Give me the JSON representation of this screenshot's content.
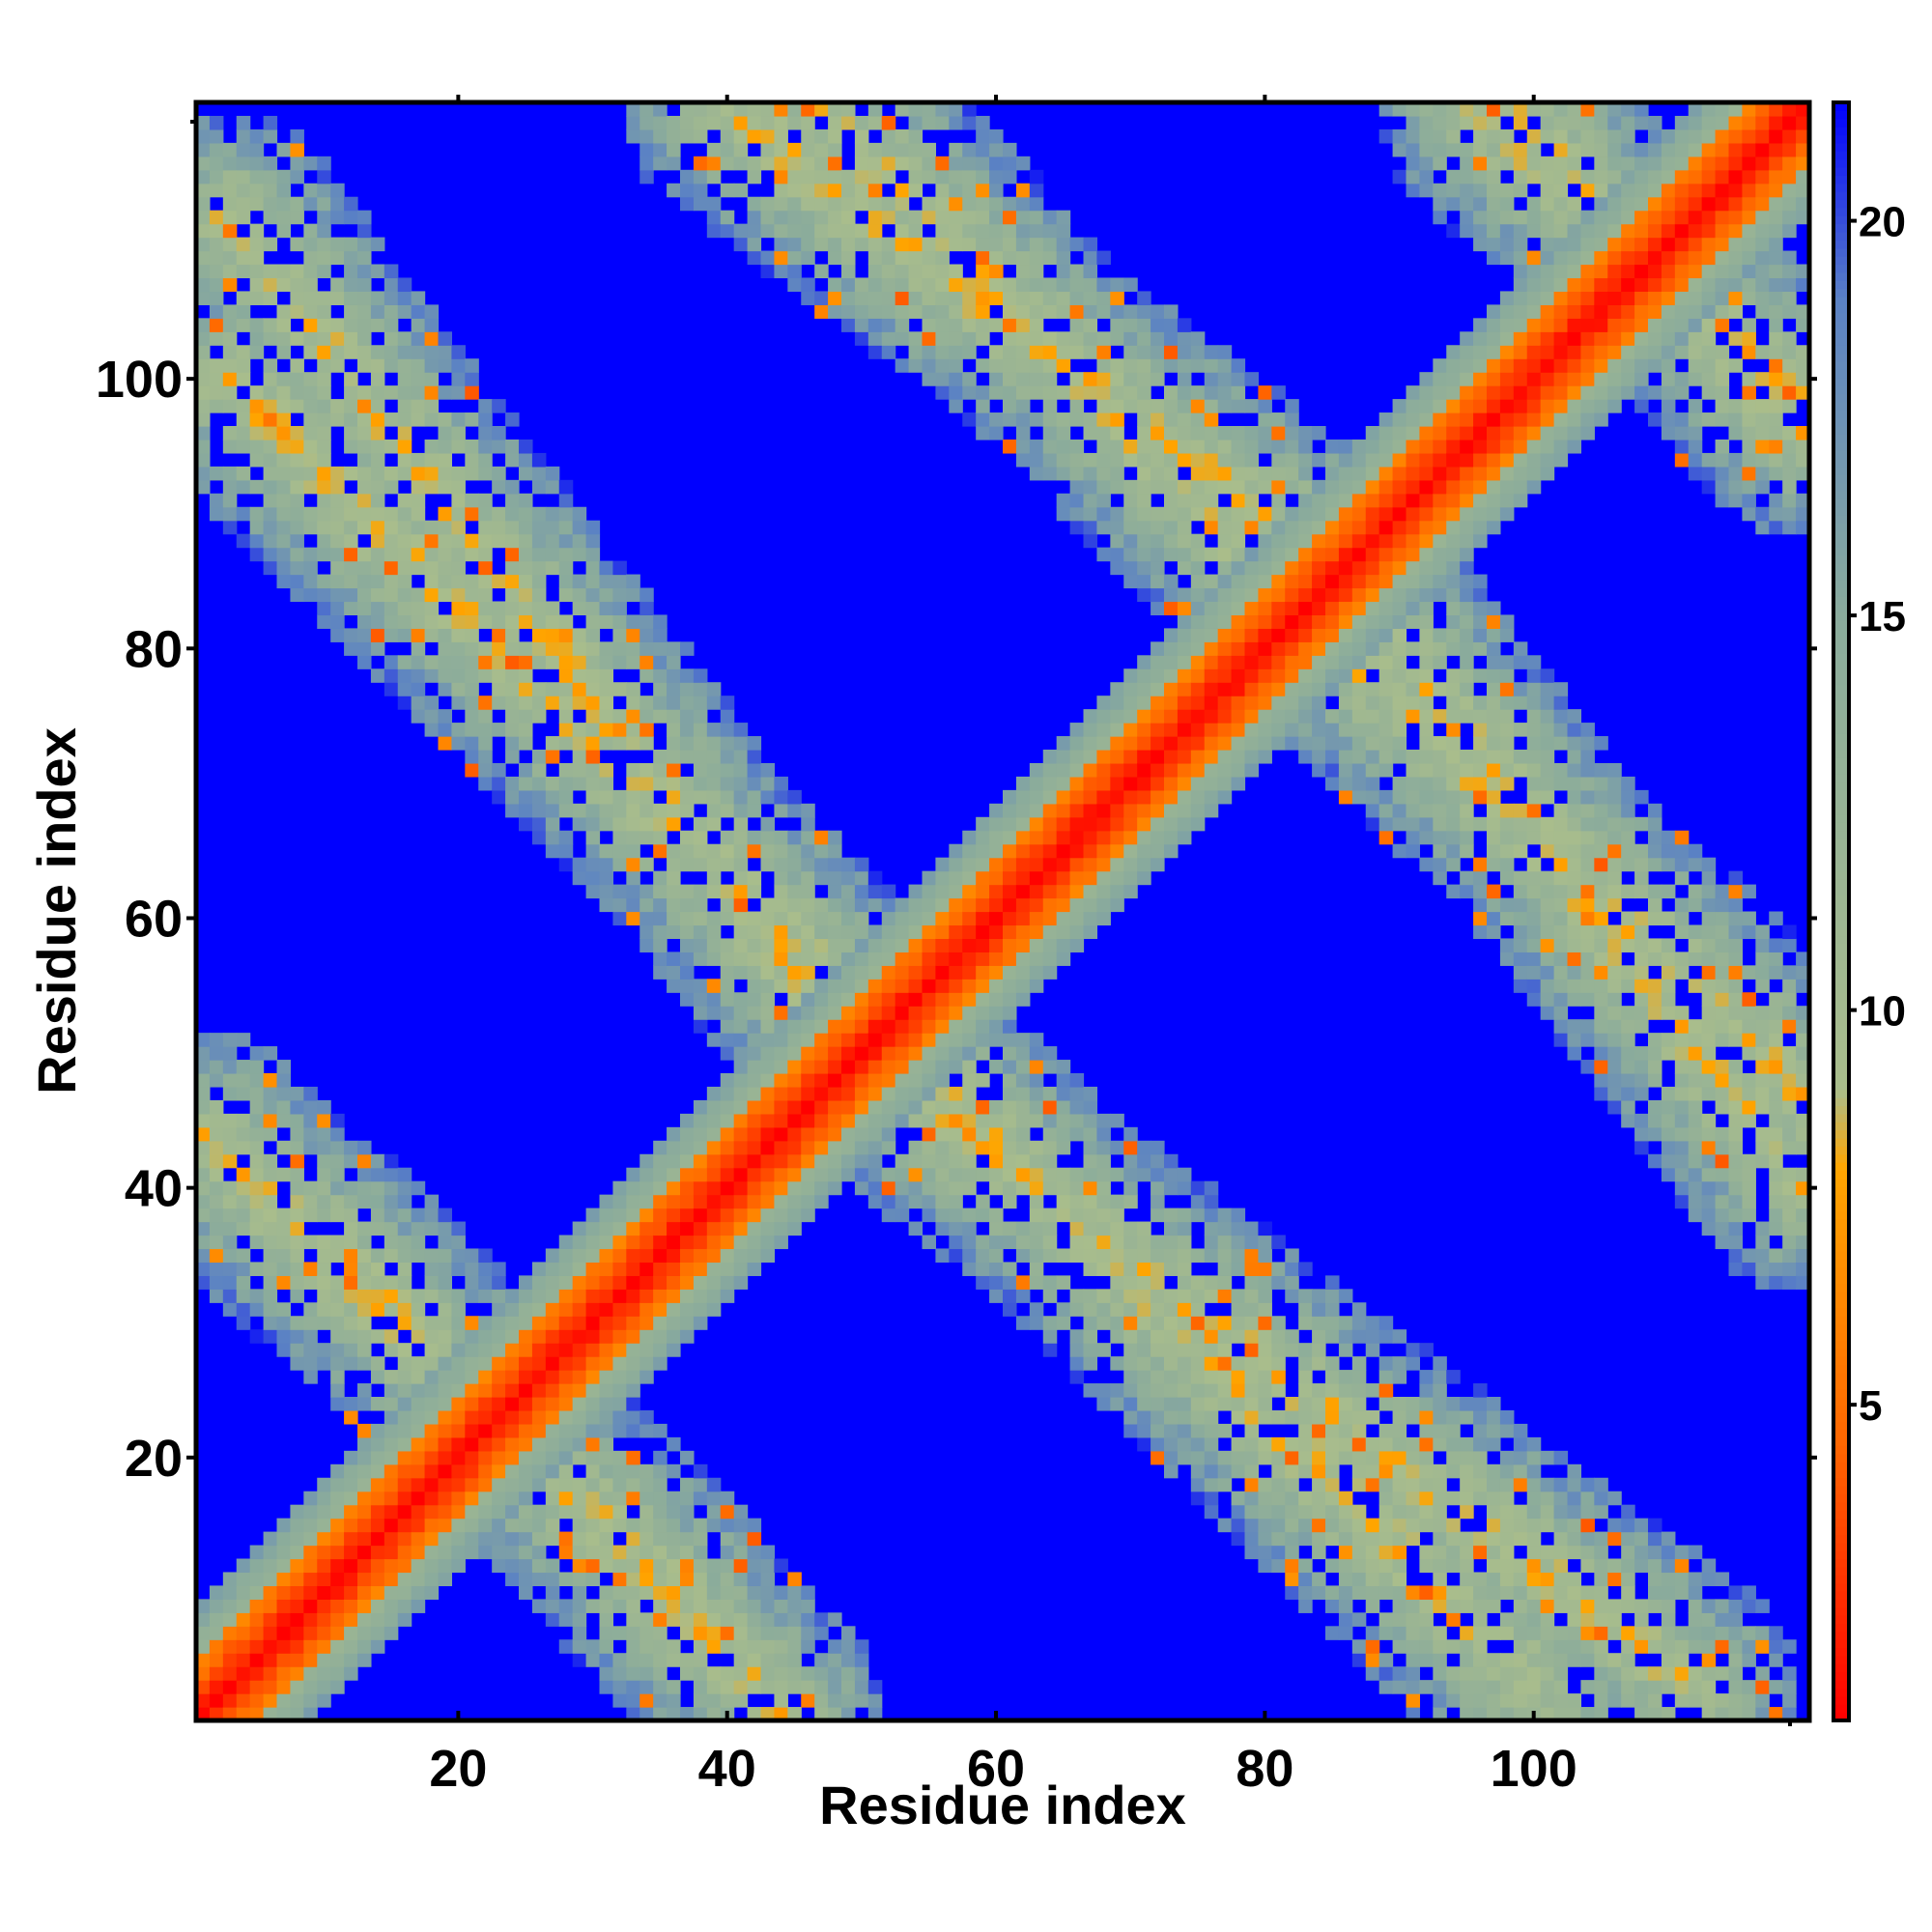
{
  "chart_data": {
    "type": "heatmap",
    "title": "",
    "xlabel": "Residue index",
    "ylabel": "Residue index",
    "n_residues": 120,
    "xlim": [
      1,
      120
    ],
    "ylim": [
      1,
      120
    ],
    "x_ticks": [
      "20",
      "40",
      "60",
      "80",
      "100"
    ],
    "x_tick_values": [
      20,
      40,
      60,
      80,
      100
    ],
    "y_ticks": [
      "20",
      "40",
      "60",
      "80",
      "100"
    ],
    "y_tick_values": [
      20,
      40,
      60,
      80,
      100
    ],
    "colorbar": {
      "range": [
        1,
        21.5
      ],
      "ticks": [
        "5",
        "10",
        "15",
        "20"
      ],
      "tick_values": [
        5,
        10,
        15,
        20
      ],
      "stops": [
        {
          "value": 1,
          "color": "#ff0000"
        },
        {
          "value": 4.5,
          "color": "#ff6600"
        },
        {
          "value": 8,
          "color": "#ffa500"
        },
        {
          "value": 9,
          "color": "#a9bd8c"
        },
        {
          "value": 15,
          "color": "#8aab9c"
        },
        {
          "value": 19,
          "color": "#5b82c4"
        },
        {
          "value": 21.5,
          "color": "#0000ff"
        }
      ]
    },
    "background_value": 21.5,
    "cap_value": 21,
    "diagonal_band": {
      "half_width": 8,
      "distance_per_residue": 1.2
    },
    "contact_segments": [
      {
        "x1": 1,
        "y1": 44,
        "x2": 36,
        "y2": 10,
        "width": 7
      },
      {
        "x1": 3,
        "y1": 100,
        "x2": 50,
        "y2": 53,
        "width": 8
      },
      {
        "x1": 40,
        "y1": 120,
        "x2": 88,
        "y2": 84,
        "width": 9
      },
      {
        "x1": 52,
        "y1": 48,
        "x2": 112,
        "y2": 3,
        "width": 8
      },
      {
        "x1": 86,
        "y1": 80,
        "x2": 120,
        "y2": 47,
        "width": 8
      },
      {
        "x1": 98,
        "y1": 120,
        "x2": 120,
        "y2": 96,
        "width": 7
      }
    ]
  }
}
